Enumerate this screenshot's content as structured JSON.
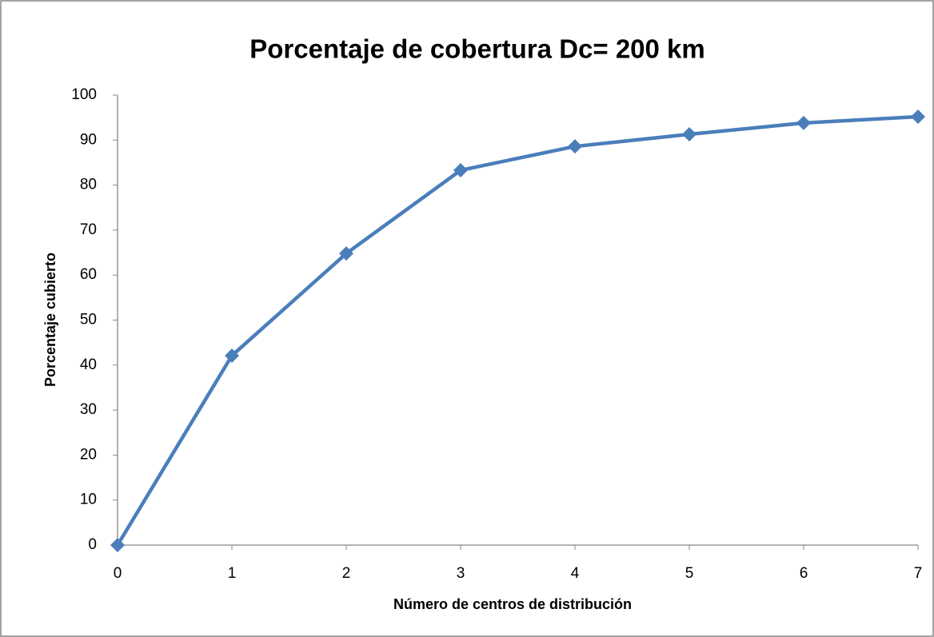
{
  "chart_data": {
    "type": "line",
    "title": "Porcentaje de cobertura Dc= 200 km",
    "x_label": "Número de centros de distribución",
    "y_label": "Porcentaje cubierto",
    "x": [
      0,
      1,
      2,
      3,
      4,
      5,
      6,
      7
    ],
    "series": [
      {
        "color": "#4a7ebb",
        "values": [
          0,
          42.1,
          64.8,
          83.3,
          88.6,
          91.3,
          93.8,
          95.2
        ]
      }
    ],
    "xlim": [
      0,
      7
    ],
    "xticks": [
      0,
      1,
      2,
      3,
      4,
      5,
      6,
      7
    ],
    "ylim": [
      0,
      100
    ],
    "yticks": [
      0,
      10,
      20,
      30,
      40,
      50,
      60,
      70,
      80,
      90,
      100
    ],
    "grid": false
  }
}
